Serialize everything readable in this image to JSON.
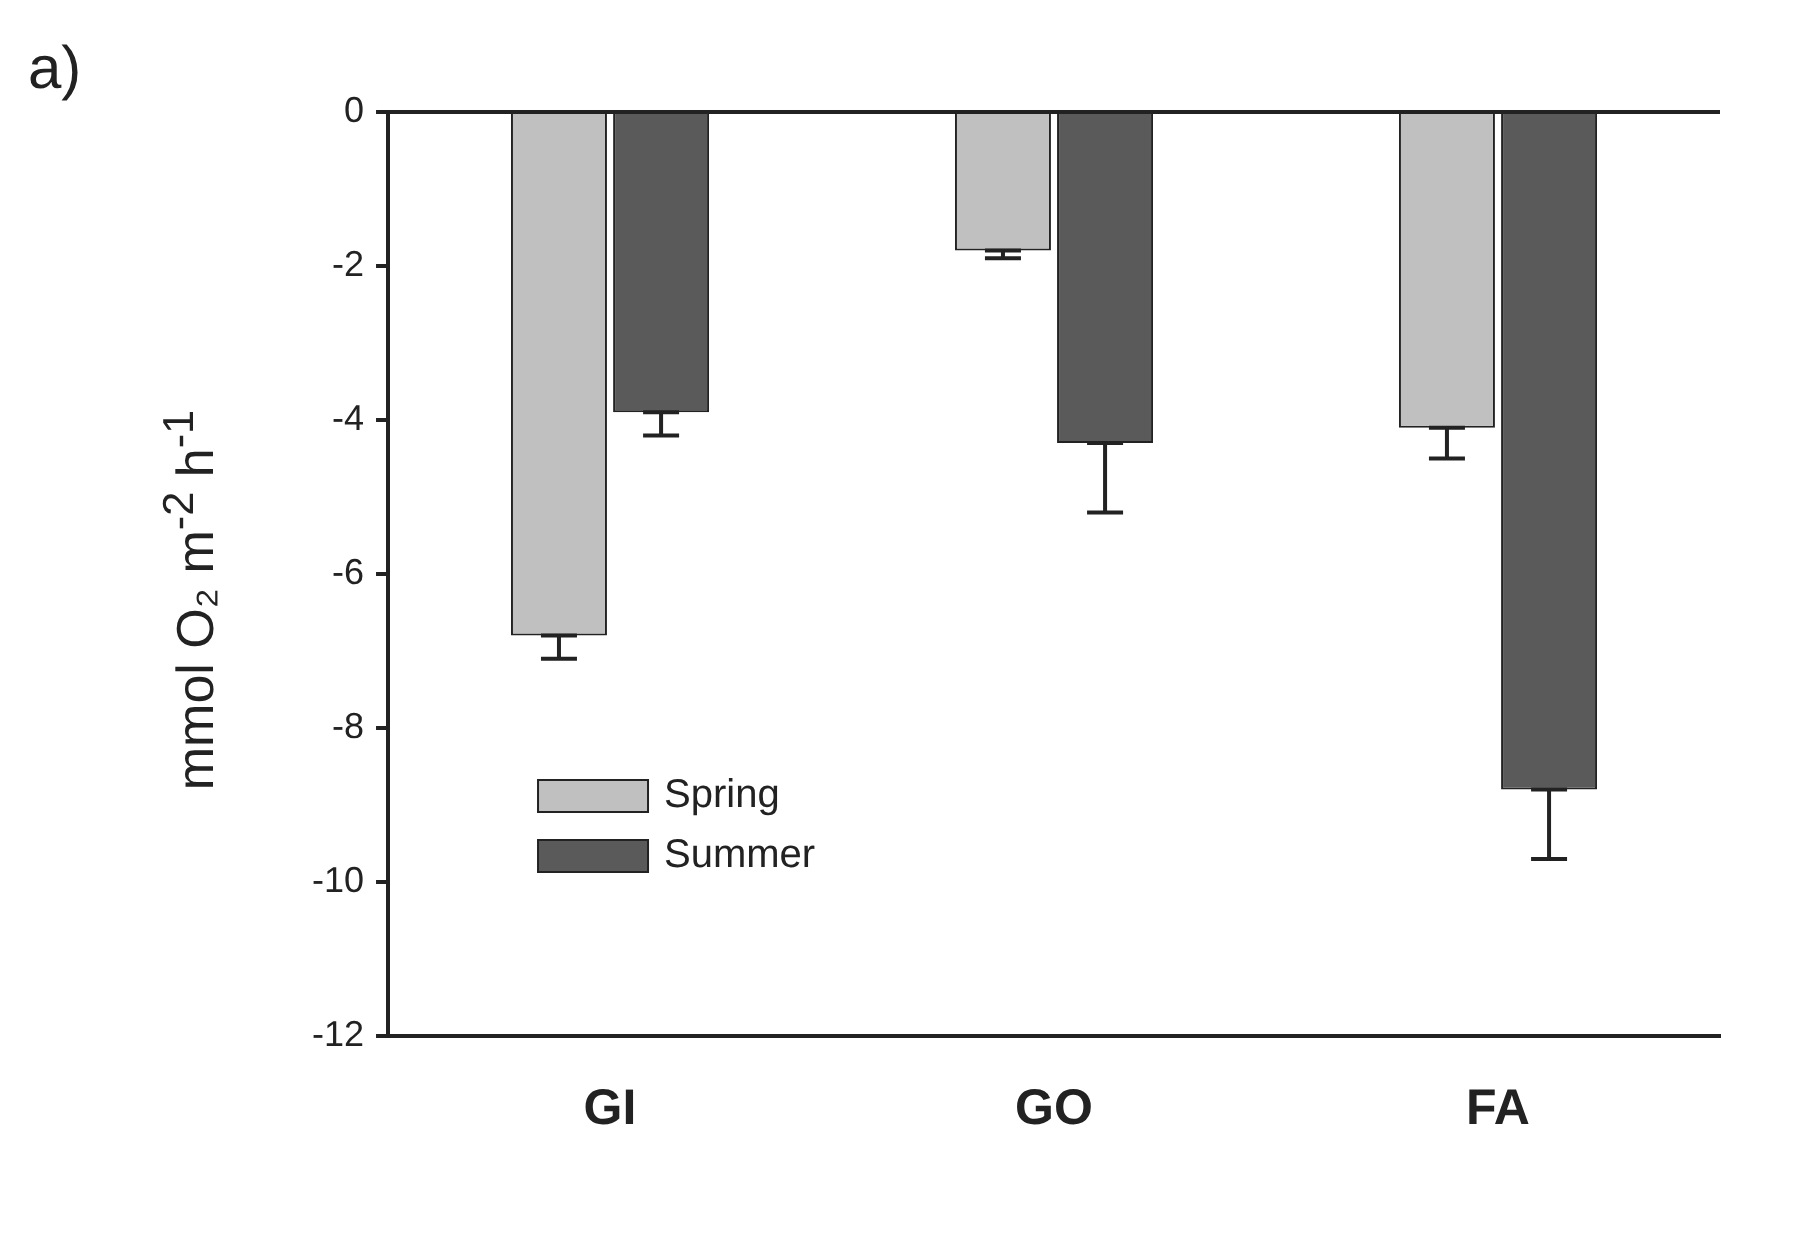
{
  "chart_data": {
    "type": "bar",
    "title": "a)",
    "ylabel": "mmol O₂ m$^{-2}$ h$^{-1}$",
    "categories": [
      "GI",
      "GO",
      "FA"
    ],
    "series": [
      {
        "name": "Spring",
        "color": "#c0c0c0",
        "values": [
          -6.8,
          -1.8,
          -4.1
        ],
        "errors": [
          [
            -7.1,
            -6.8
          ],
          [
            -1.9,
            -1.8
          ],
          [
            -4.5,
            -4.1
          ]
        ]
      },
      {
        "name": "Summer",
        "color": "#5a5a5a",
        "values": [
          -3.9,
          -4.3,
          -8.8
        ],
        "errors": [
          [
            -4.2,
            -3.9
          ],
          [
            -5.2,
            -4.3
          ],
          [
            -9.7,
            -8.8
          ]
        ]
      }
    ],
    "ylim": [
      -12,
      0
    ],
    "yticks": [
      -12,
      -10,
      -8,
      -6,
      -4,
      -2,
      0
    ],
    "grid": false,
    "legend": "bottom left"
  }
}
